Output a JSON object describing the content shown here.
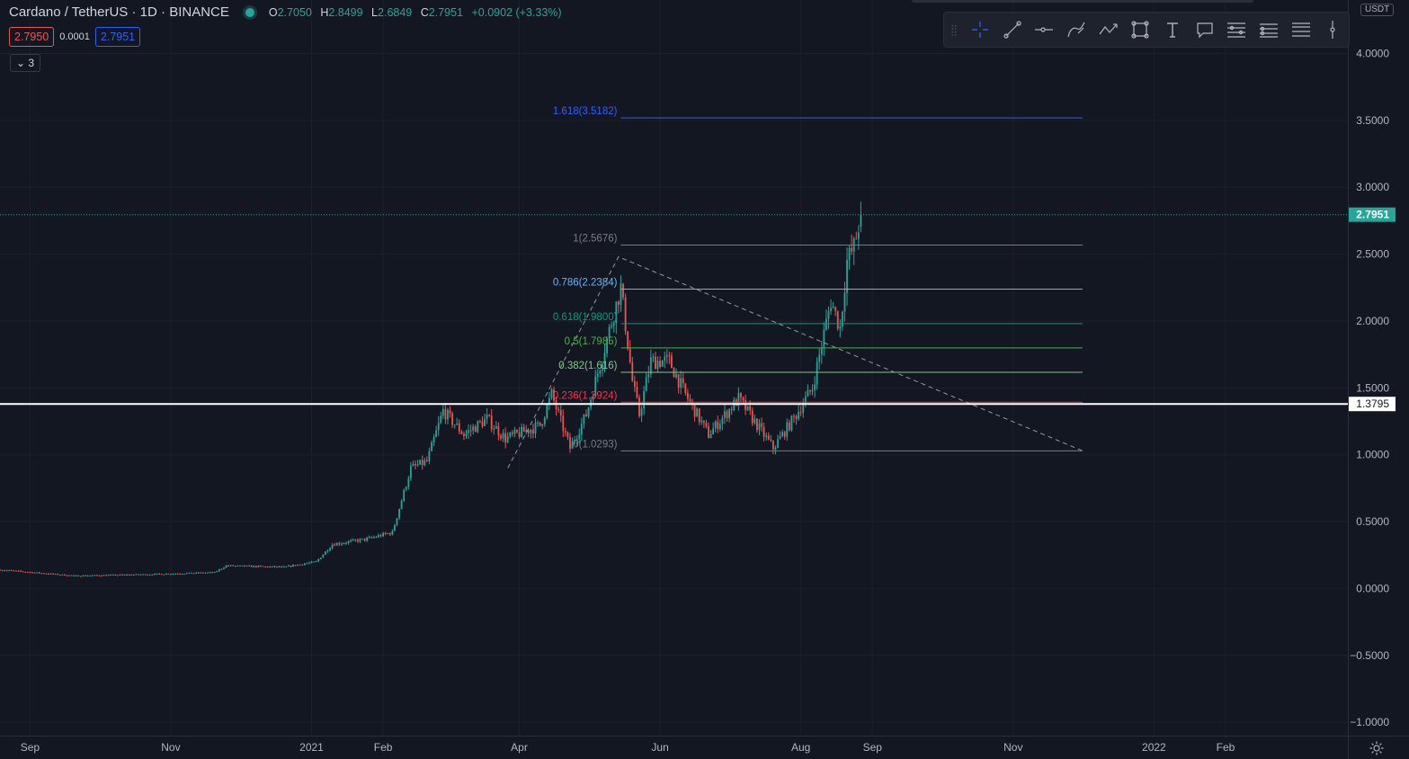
{
  "header": {
    "symbol": "Cardano / TetherUS",
    "interval": "1D",
    "exchange": "BINANCE",
    "ohlc": [
      {
        "k": "O",
        "v": "2.7050"
      },
      {
        "k": "H",
        "v": "2.8499"
      },
      {
        "k": "L",
        "v": "2.6849"
      },
      {
        "k": "C",
        "v": "2.7951"
      }
    ],
    "change": "+0.0902 (+3.33%)",
    "sell_price": "2.7950",
    "spread": "0.0001",
    "buy_price": "2.7951",
    "indicators_count": "3",
    "currency": "USDT"
  },
  "toolbar": {
    "tools": [
      "crosshair-icon",
      "trend-line-icon",
      "horizontal-ray-icon",
      "brush-icon",
      "polyline-icon",
      "rectangle-icon",
      "text-icon",
      "callout-icon",
      "fib-retracement-icon",
      "fib-channel-icon",
      "pitchfork-icon",
      "vertical-line-icon"
    ]
  },
  "colors": {
    "bg": "#131722",
    "up": "#26a69a",
    "down": "#ef5350",
    "grid": "#1c202b",
    "text": "#b2b5be"
  },
  "chart_data": {
    "type": "candlestick",
    "title": "",
    "ylim": [
      -1.1,
      4.4
    ],
    "y_ticks": [
      {
        "v": 4.0,
        "label": "4.0000"
      },
      {
        "v": 3.5,
        "label": "3.5000"
      },
      {
        "v": 3.0,
        "label": "3.0000"
      },
      {
        "v": 2.5,
        "label": "2.5000"
      },
      {
        "v": 2.0,
        "label": "2.0000"
      },
      {
        "v": 1.5,
        "label": "1.5000"
      },
      {
        "v": 1.0,
        "label": "1.0000"
      },
      {
        "v": 0.5,
        "label": "0.5000"
      },
      {
        "v": 0.0,
        "label": "0.0000"
      },
      {
        "v": -0.5,
        "label": "−0.5000"
      },
      {
        "v": -1.0,
        "label": "−1.0000"
      }
    ],
    "x_ticks": [
      {
        "date": "2020-09-01",
        "label": "Sep"
      },
      {
        "date": "2020-11-01",
        "label": "Nov"
      },
      {
        "date": "2021-01-01",
        "label": "2021"
      },
      {
        "date": "2021-02-01",
        "label": "Feb"
      },
      {
        "date": "2021-04-01",
        "label": "Apr"
      },
      {
        "date": "2021-06-01",
        "label": "Jun"
      },
      {
        "date": "2021-08-01",
        "label": "Aug"
      },
      {
        "date": "2021-09-01",
        "label": "Sep"
      },
      {
        "date": "2021-11-01",
        "label": "Nov"
      },
      {
        "date": "2022-01-01",
        "label": "2022"
      },
      {
        "date": "2022-02-01",
        "label": "Feb"
      }
    ],
    "x_range": [
      "2020-08-19",
      "2022-03-26"
    ],
    "price_path": [
      {
        "date": "2020-08-19",
        "close": 0.14
      },
      {
        "date": "2020-09-20",
        "close": 0.095
      },
      {
        "date": "2020-10-20",
        "close": 0.105
      },
      {
        "date": "2020-11-20",
        "close": 0.12
      },
      {
        "date": "2020-11-25",
        "close": 0.17
      },
      {
        "date": "2020-12-20",
        "close": 0.16
      },
      {
        "date": "2021-01-03",
        "close": 0.2
      },
      {
        "date": "2021-01-10",
        "close": 0.33
      },
      {
        "date": "2021-01-25",
        "close": 0.37
      },
      {
        "date": "2021-02-05",
        "close": 0.42
      },
      {
        "date": "2021-02-13",
        "close": 0.9
      },
      {
        "date": "2021-02-20",
        "close": 0.95
      },
      {
        "date": "2021-02-27",
        "close": 1.33
      },
      {
        "date": "2021-03-08",
        "close": 1.15
      },
      {
        "date": "2021-03-18",
        "close": 1.27
      },
      {
        "date": "2021-03-26",
        "close": 1.12
      },
      {
        "date": "2021-04-10",
        "close": 1.22
      },
      {
        "date": "2021-04-15",
        "close": 1.45
      },
      {
        "date": "2021-04-23",
        "close": 1.05
      },
      {
        "date": "2021-04-30",
        "close": 1.3
      },
      {
        "date": "2021-05-08",
        "close": 1.8
      },
      {
        "date": "2021-05-15",
        "close": 2.25
      },
      {
        "date": "2021-05-20",
        "close": 1.55
      },
      {
        "date": "2021-05-23",
        "close": 1.3
      },
      {
        "date": "2021-05-28",
        "close": 1.7
      },
      {
        "date": "2021-06-05",
        "close": 1.7
      },
      {
        "date": "2021-06-12",
        "close": 1.45
      },
      {
        "date": "2021-06-22",
        "close": 1.15
      },
      {
        "date": "2021-07-05",
        "close": 1.42
      },
      {
        "date": "2021-07-20",
        "close": 1.05
      },
      {
        "date": "2021-07-30",
        "close": 1.3
      },
      {
        "date": "2021-08-06",
        "close": 1.5
      },
      {
        "date": "2021-08-14",
        "close": 2.15
      },
      {
        "date": "2021-08-18",
        "close": 1.95
      },
      {
        "date": "2021-08-21",
        "close": 2.45
      },
      {
        "date": "2021-08-24",
        "close": 2.55
      },
      {
        "date": "2021-08-27",
        "close": 2.7951
      }
    ],
    "last_price": {
      "value": 2.7951,
      "label": "2.7951",
      "color": "#26a69a"
    },
    "horizontal_line": {
      "value": 1.3795,
      "label": "1.3795",
      "color": "#ffffff"
    },
    "fib_retracement": {
      "start_date": "2021-05-15",
      "end_date": "2021-12-01",
      "levels": [
        {
          "ratio": "1.618",
          "label": "1.618(3.5182)",
          "price": 3.5182,
          "color": "#2962ff"
        },
        {
          "ratio": "1",
          "label": "1(2.5676)",
          "price": 2.5676,
          "color": "#787b86"
        },
        {
          "ratio": "0.786",
          "label": "0.786(2.2384)",
          "price": 2.2384,
          "color": "#64b5f6"
        },
        {
          "ratio": "0.618",
          "label": "0.618(1.9800)",
          "price": 1.98,
          "color": "#089981"
        },
        {
          "ratio": "0.5",
          "label": "0.5(1.7985)",
          "price": 1.7985,
          "color": "#4caf50"
        },
        {
          "ratio": "0.382",
          "label": "0.382(1.616)",
          "price": 1.616,
          "color": "#81c784"
        },
        {
          "ratio": "0.236",
          "label": "0.236(1.3924)",
          "price": 1.3924,
          "color": "#f23645"
        },
        {
          "ratio": "0",
          "label": "0(1.0293)",
          "price": 1.0293,
          "color": "#787b86"
        }
      ]
    },
    "dashed_trend_line": {
      "from": {
        "date": "2021-03-27",
        "price": 0.9
      },
      "via": {
        "date": "2021-05-14",
        "price": 2.48
      },
      "to": {
        "date": "2021-12-01",
        "price": 1.03
      }
    }
  }
}
